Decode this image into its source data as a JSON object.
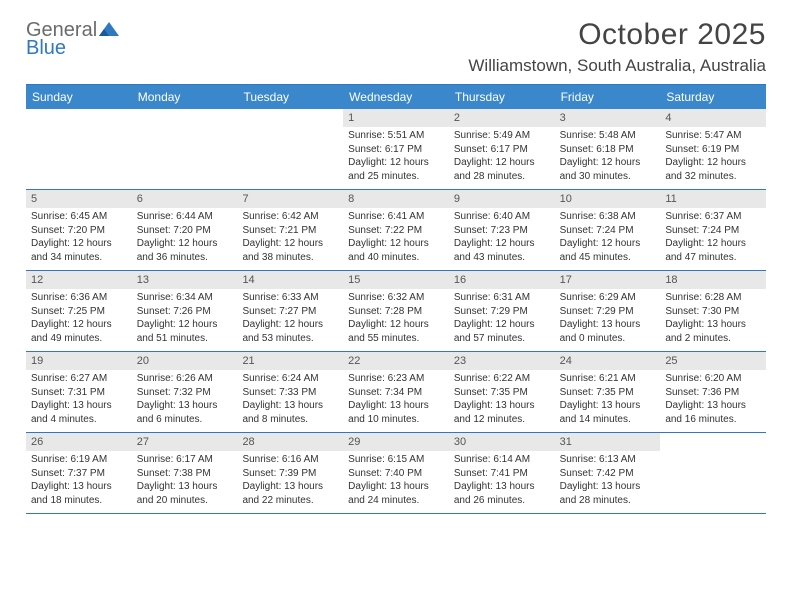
{
  "brand": {
    "line1": "General",
    "line2": "Blue"
  },
  "colors": {
    "header_bg": "#3a87cc",
    "rule": "#2f78c2",
    "daynum_bg": "#e8e8e8",
    "text": "#333333",
    "brand_gray": "#6b6b6b",
    "brand_blue": "#2f78c2"
  },
  "typography": {
    "body_pt": 10,
    "daynum_pt": 11,
    "weekday_pt": 12,
    "title_pt": 30,
    "location_pt": 17
  },
  "title": "October 2025",
  "location": "Williamstown, South Australia, Australia",
  "weekdays": [
    "Sunday",
    "Monday",
    "Tuesday",
    "Wednesday",
    "Thursday",
    "Friday",
    "Saturday"
  ],
  "leading_blank": 3,
  "days": [
    {
      "n": "1",
      "sunrise": "5:51 AM",
      "sunset": "6:17 PM",
      "d_h": 12,
      "d_m": 25
    },
    {
      "n": "2",
      "sunrise": "5:49 AM",
      "sunset": "6:17 PM",
      "d_h": 12,
      "d_m": 28
    },
    {
      "n": "3",
      "sunrise": "5:48 AM",
      "sunset": "6:18 PM",
      "d_h": 12,
      "d_m": 30
    },
    {
      "n": "4",
      "sunrise": "5:47 AM",
      "sunset": "6:19 PM",
      "d_h": 12,
      "d_m": 32
    },
    {
      "n": "5",
      "sunrise": "6:45 AM",
      "sunset": "7:20 PM",
      "d_h": 12,
      "d_m": 34
    },
    {
      "n": "6",
      "sunrise": "6:44 AM",
      "sunset": "7:20 PM",
      "d_h": 12,
      "d_m": 36
    },
    {
      "n": "7",
      "sunrise": "6:42 AM",
      "sunset": "7:21 PM",
      "d_h": 12,
      "d_m": 38
    },
    {
      "n": "8",
      "sunrise": "6:41 AM",
      "sunset": "7:22 PM",
      "d_h": 12,
      "d_m": 40
    },
    {
      "n": "9",
      "sunrise": "6:40 AM",
      "sunset": "7:23 PM",
      "d_h": 12,
      "d_m": 43
    },
    {
      "n": "10",
      "sunrise": "6:38 AM",
      "sunset": "7:24 PM",
      "d_h": 12,
      "d_m": 45
    },
    {
      "n": "11",
      "sunrise": "6:37 AM",
      "sunset": "7:24 PM",
      "d_h": 12,
      "d_m": 47
    },
    {
      "n": "12",
      "sunrise": "6:36 AM",
      "sunset": "7:25 PM",
      "d_h": 12,
      "d_m": 49
    },
    {
      "n": "13",
      "sunrise": "6:34 AM",
      "sunset": "7:26 PM",
      "d_h": 12,
      "d_m": 51
    },
    {
      "n": "14",
      "sunrise": "6:33 AM",
      "sunset": "7:27 PM",
      "d_h": 12,
      "d_m": 53
    },
    {
      "n": "15",
      "sunrise": "6:32 AM",
      "sunset": "7:28 PM",
      "d_h": 12,
      "d_m": 55
    },
    {
      "n": "16",
      "sunrise": "6:31 AM",
      "sunset": "7:29 PM",
      "d_h": 12,
      "d_m": 57
    },
    {
      "n": "17",
      "sunrise": "6:29 AM",
      "sunset": "7:29 PM",
      "d_h": 13,
      "d_m": 0
    },
    {
      "n": "18",
      "sunrise": "6:28 AM",
      "sunset": "7:30 PM",
      "d_h": 13,
      "d_m": 2
    },
    {
      "n": "19",
      "sunrise": "6:27 AM",
      "sunset": "7:31 PM",
      "d_h": 13,
      "d_m": 4
    },
    {
      "n": "20",
      "sunrise": "6:26 AM",
      "sunset": "7:32 PM",
      "d_h": 13,
      "d_m": 6
    },
    {
      "n": "21",
      "sunrise": "6:24 AM",
      "sunset": "7:33 PM",
      "d_h": 13,
      "d_m": 8
    },
    {
      "n": "22",
      "sunrise": "6:23 AM",
      "sunset": "7:34 PM",
      "d_h": 13,
      "d_m": 10
    },
    {
      "n": "23",
      "sunrise": "6:22 AM",
      "sunset": "7:35 PM",
      "d_h": 13,
      "d_m": 12
    },
    {
      "n": "24",
      "sunrise": "6:21 AM",
      "sunset": "7:35 PM",
      "d_h": 13,
      "d_m": 14
    },
    {
      "n": "25",
      "sunrise": "6:20 AM",
      "sunset": "7:36 PM",
      "d_h": 13,
      "d_m": 16
    },
    {
      "n": "26",
      "sunrise": "6:19 AM",
      "sunset": "7:37 PM",
      "d_h": 13,
      "d_m": 18
    },
    {
      "n": "27",
      "sunrise": "6:17 AM",
      "sunset": "7:38 PM",
      "d_h": 13,
      "d_m": 20
    },
    {
      "n": "28",
      "sunrise": "6:16 AM",
      "sunset": "7:39 PM",
      "d_h": 13,
      "d_m": 22
    },
    {
      "n": "29",
      "sunrise": "6:15 AM",
      "sunset": "7:40 PM",
      "d_h": 13,
      "d_m": 24
    },
    {
      "n": "30",
      "sunrise": "6:14 AM",
      "sunset": "7:41 PM",
      "d_h": 13,
      "d_m": 26
    },
    {
      "n": "31",
      "sunrise": "6:13 AM",
      "sunset": "7:42 PM",
      "d_h": 13,
      "d_m": 28
    }
  ]
}
